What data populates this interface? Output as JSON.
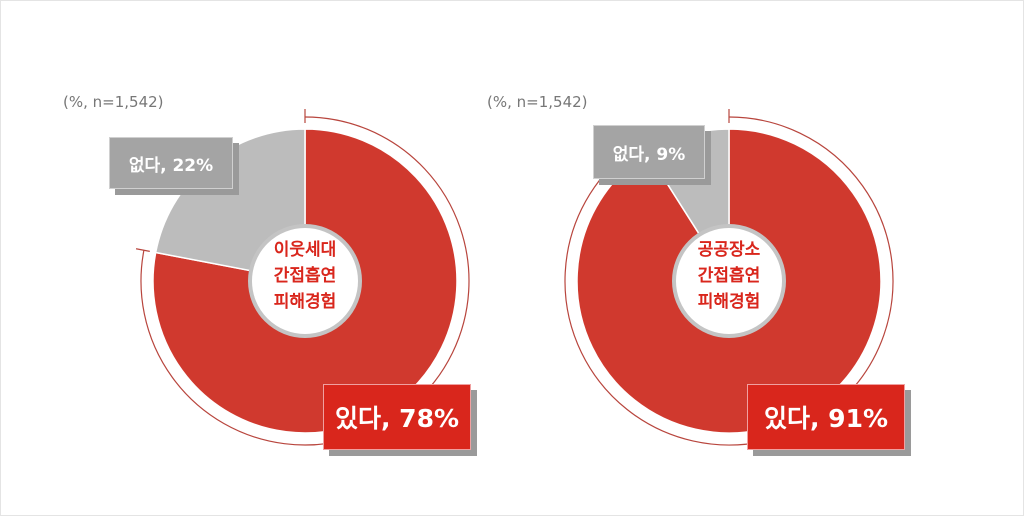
{
  "chart_data": [
    {
      "type": "pie",
      "donut": true,
      "note": "(%, n=1,542)",
      "center_label": [
        "이웃세대",
        "간접흡연",
        "피해경험"
      ],
      "slices": [
        {
          "label": "있다",
          "value": 78,
          "display": "있다, 78%",
          "color": "#d0392e"
        },
        {
          "label": "없다",
          "value": 22,
          "display": "없다, 22%",
          "color": "#bcbcbc"
        }
      ]
    },
    {
      "type": "pie",
      "donut": true,
      "note": "(%, n=1,542)",
      "center_label": [
        "공공장소",
        "간접흡연",
        "피해경험"
      ],
      "slices": [
        {
          "label": "있다",
          "value": 91,
          "display": "있다, 91%",
          "color": "#d0392e"
        },
        {
          "label": "없다",
          "value": 9,
          "display": "없다, 9%",
          "color": "#bcbcbc"
        }
      ]
    }
  ]
}
